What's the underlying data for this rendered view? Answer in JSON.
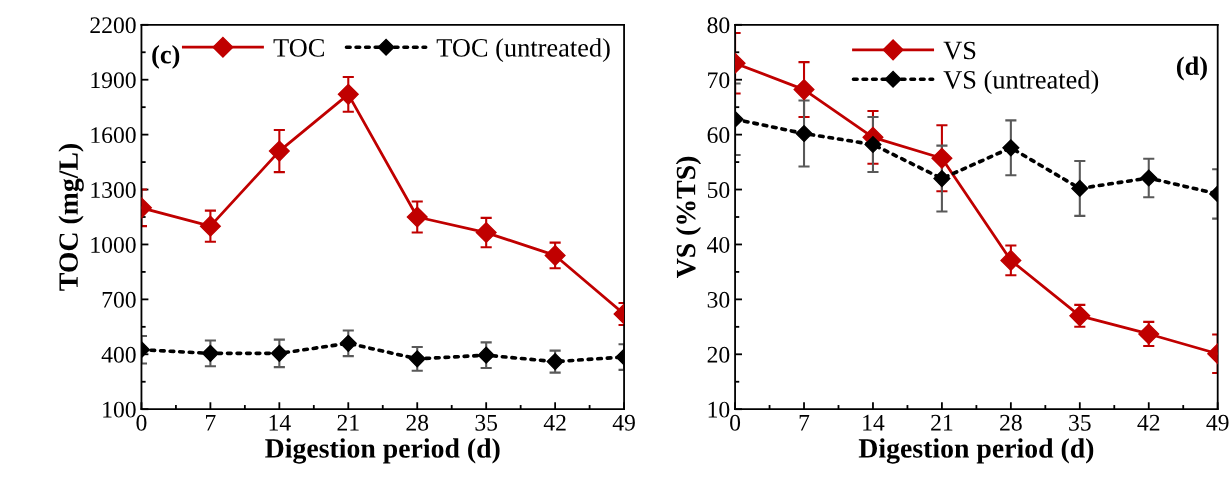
{
  "chart_data": [
    {
      "type": "line",
      "x": [
        0,
        7,
        14,
        21,
        28,
        35,
        42,
        49
      ],
      "xlim": [
        0,
        49
      ],
      "xticks": [
        0,
        7,
        14,
        21,
        28,
        35,
        42,
        49
      ],
      "ylim": [
        100,
        2200
      ],
      "yticks": [
        100,
        400,
        700,
        1000,
        1300,
        1600,
        1900,
        2200
      ],
      "xlabel": "Digestion period (d)",
      "ylabel": "TOC (mg/L)",
      "annotations": [
        "(c)"
      ],
      "legend": "top",
      "grid": false,
      "marker": "diamond",
      "series": [
        {
          "name": "TOC",
          "color": "#c00000",
          "line_style": "solid",
          "values": [
            1200,
            1100,
            1510,
            1820,
            1150,
            1065,
            940,
            620
          ],
          "errors": [
            100,
            85,
            115,
            95,
            85,
            80,
            70,
            60
          ]
        },
        {
          "name": "TOC (untreated)",
          "color": "#000000",
          "line_style": "dotted",
          "values": [
            425,
            405,
            405,
            460,
            375,
            395,
            360,
            385
          ],
          "errors": [
            75,
            70,
            75,
            70,
            65,
            70,
            60,
            70
          ]
        }
      ]
    },
    {
      "type": "line",
      "x": [
        0,
        7,
        14,
        21,
        28,
        35,
        42,
        49
      ],
      "xlim": [
        0,
        49
      ],
      "xticks": [
        0,
        7,
        14,
        21,
        28,
        35,
        42,
        49
      ],
      "ylim": [
        10,
        80
      ],
      "yticks": [
        10,
        20,
        30,
        40,
        50,
        60,
        70,
        80
      ],
      "xlabel": "Digestion period (d)",
      "ylabel": "VS (%TS)",
      "annotations": [
        "(d)"
      ],
      "legend": "top",
      "grid": false,
      "marker": "diamond",
      "series": [
        {
          "name": "VS",
          "color": "#c00000",
          "line_style": "solid",
          "values": [
            73,
            68.2,
            59.5,
            55.7,
            37.1,
            27,
            23.7,
            20.1
          ],
          "errors": [
            5.5,
            5,
            4.8,
            6,
            2.7,
            2,
            2.2,
            3.5
          ]
        },
        {
          "name": "VS (untreated)",
          "color": "#000000",
          "line_style": "dotted",
          "values": [
            62.8,
            60.2,
            58.2,
            52,
            57.6,
            50.2,
            52.1,
            49.2
          ],
          "errors": [
            6.5,
            6,
            5,
            6,
            5,
            5,
            3.5,
            4.5
          ]
        }
      ]
    }
  ]
}
